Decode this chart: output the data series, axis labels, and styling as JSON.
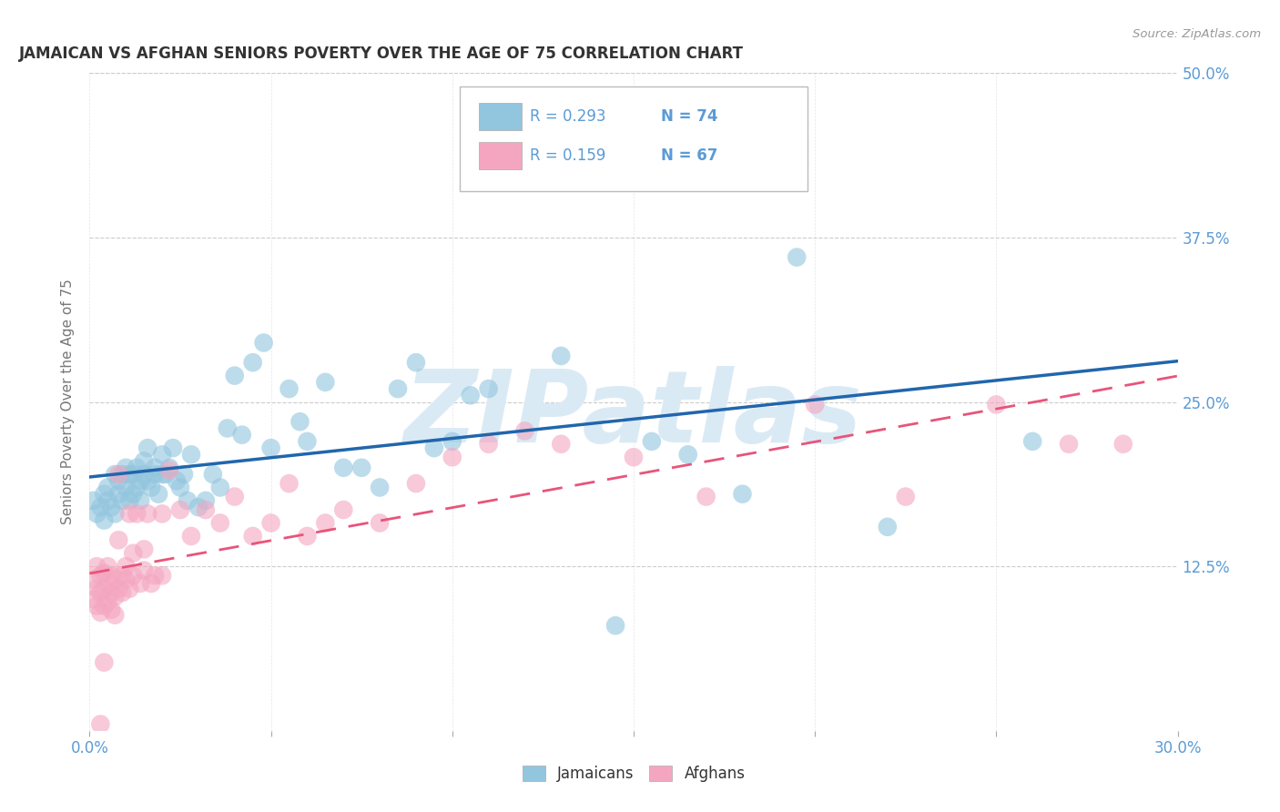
{
  "title": "JAMAICAN VS AFGHAN SENIORS POVERTY OVER THE AGE OF 75 CORRELATION CHART",
  "source": "Source: ZipAtlas.com",
  "ylabel": "Seniors Poverty Over the Age of 75",
  "xlim": [
    0.0,
    0.3
  ],
  "ylim": [
    0.0,
    0.5
  ],
  "xticks": [
    0.0,
    0.05,
    0.1,
    0.15,
    0.2,
    0.25,
    0.3
  ],
  "xticklabels": [
    "0.0%",
    "",
    "",
    "",
    "",
    "",
    "30.0%"
  ],
  "yticks": [
    0.125,
    0.25,
    0.375,
    0.5
  ],
  "yticklabels": [
    "12.5%",
    "25.0%",
    "37.5%",
    "50.0%"
  ],
  "legend_R1": "0.293",
  "legend_N1": "74",
  "legend_R2": "0.159",
  "legend_N2": "67",
  "jamaican_color": "#92c5de",
  "afghan_color": "#f4a6c0",
  "line_jamaican_color": "#2166ac",
  "line_afghan_color": "#e8547a",
  "background_color": "#ffffff",
  "grid_color": "#cccccc",
  "title_color": "#333333",
  "tick_color": "#5b9bd5",
  "watermark_text": "ZIPatlas",
  "watermark_color": "#daeaf5",
  "jamaicans_x": [
    0.001,
    0.002,
    0.003,
    0.004,
    0.004,
    0.005,
    0.005,
    0.006,
    0.007,
    0.007,
    0.008,
    0.008,
    0.009,
    0.009,
    0.01,
    0.01,
    0.011,
    0.011,
    0.012,
    0.012,
    0.013,
    0.013,
    0.014,
    0.014,
    0.015,
    0.015,
    0.016,
    0.016,
    0.017,
    0.018,
    0.018,
    0.019,
    0.02,
    0.02,
    0.021,
    0.022,
    0.023,
    0.024,
    0.025,
    0.026,
    0.027,
    0.028,
    0.03,
    0.032,
    0.034,
    0.036,
    0.038,
    0.04,
    0.042,
    0.045,
    0.048,
    0.05,
    0.055,
    0.058,
    0.06,
    0.065,
    0.07,
    0.075,
    0.08,
    0.085,
    0.09,
    0.095,
    0.1,
    0.105,
    0.11,
    0.12,
    0.13,
    0.145,
    0.155,
    0.165,
    0.18,
    0.195,
    0.22,
    0.26
  ],
  "jamaicans_y": [
    0.175,
    0.165,
    0.17,
    0.18,
    0.16,
    0.185,
    0.175,
    0.17,
    0.195,
    0.165,
    0.19,
    0.18,
    0.195,
    0.175,
    0.185,
    0.2,
    0.195,
    0.175,
    0.18,
    0.195,
    0.2,
    0.185,
    0.19,
    0.175,
    0.205,
    0.195,
    0.215,
    0.19,
    0.185,
    0.2,
    0.195,
    0.18,
    0.195,
    0.21,
    0.195,
    0.2,
    0.215,
    0.19,
    0.185,
    0.195,
    0.175,
    0.21,
    0.17,
    0.175,
    0.195,
    0.185,
    0.23,
    0.27,
    0.225,
    0.28,
    0.295,
    0.215,
    0.26,
    0.235,
    0.22,
    0.265,
    0.2,
    0.2,
    0.185,
    0.26,
    0.28,
    0.215,
    0.22,
    0.255,
    0.26,
    0.43,
    0.285,
    0.08,
    0.22,
    0.21,
    0.18,
    0.36,
    0.155,
    0.22
  ],
  "afghans_x": [
    0.001,
    0.001,
    0.002,
    0.002,
    0.002,
    0.003,
    0.003,
    0.003,
    0.004,
    0.004,
    0.004,
    0.005,
    0.005,
    0.005,
    0.006,
    0.006,
    0.006,
    0.007,
    0.007,
    0.007,
    0.008,
    0.008,
    0.009,
    0.009,
    0.01,
    0.01,
    0.011,
    0.011,
    0.012,
    0.013,
    0.014,
    0.015,
    0.016,
    0.017,
    0.018,
    0.02,
    0.022,
    0.025,
    0.028,
    0.032,
    0.036,
    0.04,
    0.045,
    0.05,
    0.055,
    0.06,
    0.065,
    0.07,
    0.08,
    0.09,
    0.1,
    0.11,
    0.12,
    0.13,
    0.15,
    0.17,
    0.2,
    0.225,
    0.25,
    0.27,
    0.285,
    0.012,
    0.015,
    0.02,
    0.008,
    0.004,
    0.003
  ],
  "afghans_y": [
    0.115,
    0.1,
    0.125,
    0.108,
    0.095,
    0.118,
    0.105,
    0.09,
    0.12,
    0.108,
    0.095,
    0.125,
    0.112,
    0.098,
    0.118,
    0.105,
    0.092,
    0.115,
    0.102,
    0.088,
    0.195,
    0.108,
    0.118,
    0.105,
    0.115,
    0.125,
    0.165,
    0.108,
    0.118,
    0.165,
    0.112,
    0.122,
    0.165,
    0.112,
    0.118,
    0.118,
    0.198,
    0.168,
    0.148,
    0.168,
    0.158,
    0.178,
    0.148,
    0.158,
    0.188,
    0.148,
    0.158,
    0.168,
    0.158,
    0.188,
    0.208,
    0.218,
    0.228,
    0.218,
    0.208,
    0.178,
    0.248,
    0.178,
    0.248,
    0.218,
    0.218,
    0.135,
    0.138,
    0.165,
    0.145,
    0.052,
    0.005
  ]
}
